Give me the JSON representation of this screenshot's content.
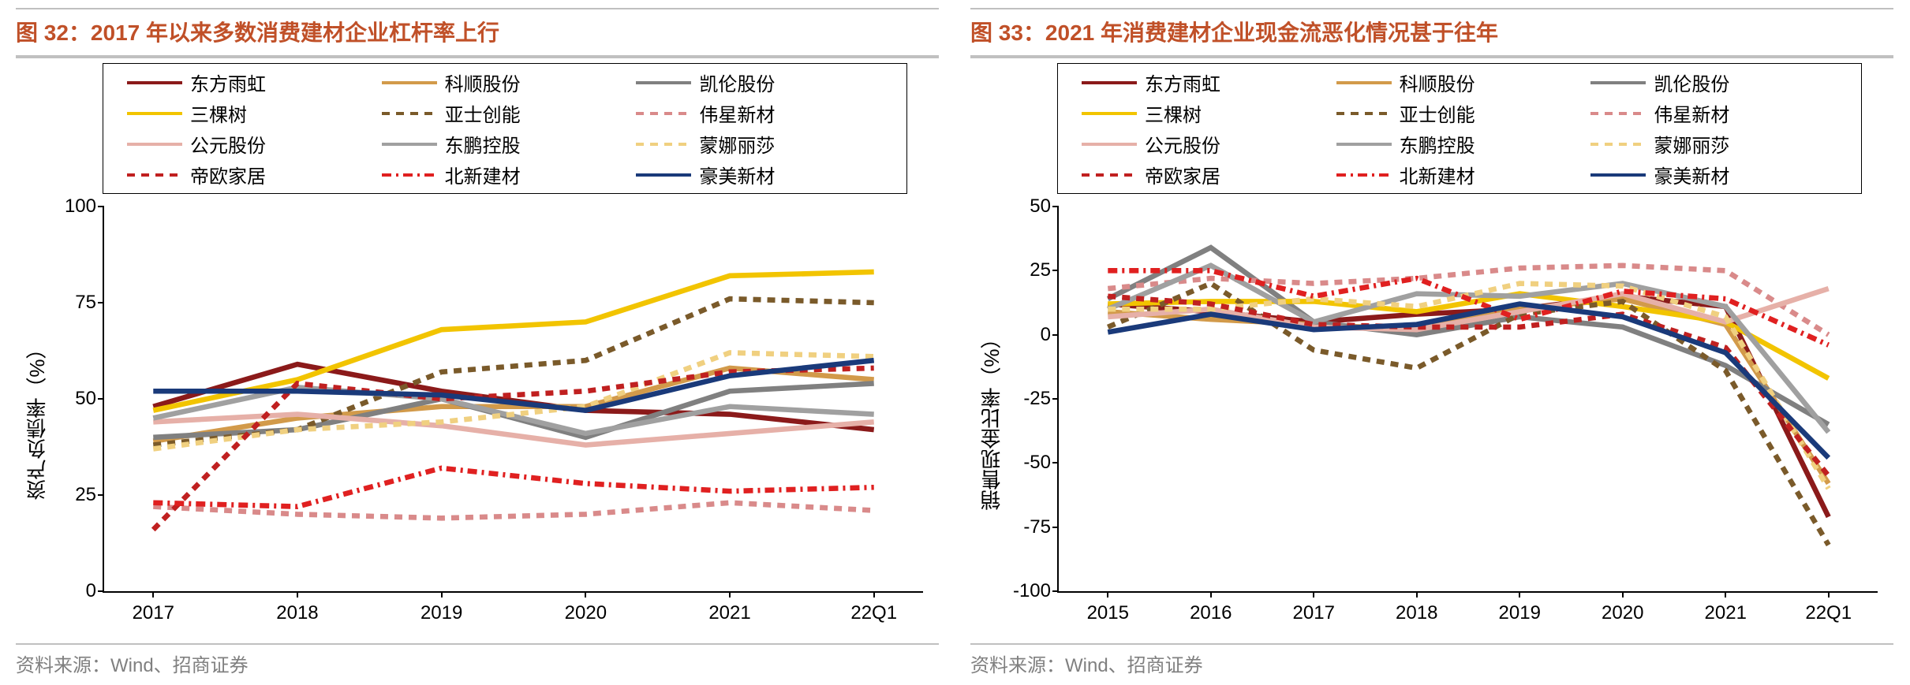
{
  "panels": [
    {
      "title": "图 32：2017 年以来多数消费建材企业杠杆率上行",
      "ylabel": "资产负债率（%）",
      "source": "资料来源：Wind、招商证券",
      "xlabels": [
        "2017",
        "2018",
        "2019",
        "2020",
        "2021",
        "22Q1"
      ],
      "ylim": [
        0,
        100
      ],
      "ytick_step": 25,
      "series": [
        {
          "name": "东方雨虹",
          "color": "#8b1a1a",
          "dash": "solid",
          "width": 3,
          "values": [
            48,
            59,
            52,
            47,
            46,
            42
          ]
        },
        {
          "name": "科顺股份",
          "color": "#d29a4a",
          "dash": "solid",
          "width": 3,
          "values": [
            39,
            45,
            48,
            48,
            58,
            55
          ]
        },
        {
          "name": "凯伦股份",
          "color": "#808080",
          "dash": "solid",
          "width": 3,
          "values": [
            40,
            42,
            50,
            40,
            52,
            54
          ]
        },
        {
          "name": "三棵树",
          "color": "#f2c400",
          "dash": "solid",
          "width": 3,
          "values": [
            47,
            55,
            68,
            70,
            82,
            83
          ]
        },
        {
          "name": "亚士创能",
          "color": "#7a5a2a",
          "dash": "dash",
          "width": 3,
          "values": [
            38,
            42,
            57,
            60,
            76,
            75
          ]
        },
        {
          "name": "伟星新材",
          "color": "#d98a8a",
          "dash": "dash",
          "width": 3,
          "values": [
            22,
            20,
            19,
            20,
            23,
            21
          ]
        },
        {
          "name": "公元股份",
          "color": "#e6b0a8",
          "dash": "solid",
          "width": 3,
          "values": [
            44,
            46,
            43,
            38,
            41,
            44
          ]
        },
        {
          "name": "东鹏控股",
          "color": "#a0a0a0",
          "dash": "solid",
          "width": 3,
          "values": [
            45,
            53,
            50,
            41,
            48,
            46
          ]
        },
        {
          "name": "蒙娜丽莎",
          "color": "#f0d080",
          "dash": "dash",
          "width": 3,
          "values": [
            37,
            42,
            44,
            48,
            62,
            61
          ]
        },
        {
          "name": "帝欧家居",
          "color": "#c02020",
          "dash": "dash",
          "width": 3,
          "values": [
            16,
            54,
            50,
            52,
            57,
            58
          ]
        },
        {
          "name": "北新建材",
          "color": "#e02020",
          "dash": "dashdot",
          "width": 3,
          "values": [
            23,
            22,
            32,
            28,
            26,
            27
          ]
        },
        {
          "name": "豪美新材",
          "color": "#1a3a7a",
          "dash": "solid",
          "width": 3,
          "values": [
            52,
            52,
            51,
            47,
            56,
            60
          ]
        }
      ]
    },
    {
      "title": "图 33：2021 年消费建材企业现金流恶化情况甚于往年",
      "ylabel": "销售现金比率（%）",
      "source": "资料来源：Wind、招商证券",
      "xlabels": [
        "2015",
        "2016",
        "2017",
        "2018",
        "2019",
        "2020",
        "2021",
        "22Q1"
      ],
      "ylim": [
        -100,
        50
      ],
      "ytick_step": 25,
      "series": [
        {
          "name": "东方雨虹",
          "color": "#8b1a1a",
          "dash": "solid",
          "width": 3,
          "values": [
            12,
            9,
            5,
            8,
            10,
            15,
            11,
            -71
          ]
        },
        {
          "name": "科顺股份",
          "color": "#d29a4a",
          "dash": "solid",
          "width": 3,
          "values": [
            9,
            6,
            4,
            2,
            10,
            14,
            4,
            -58
          ]
        },
        {
          "name": "凯伦股份",
          "color": "#808080",
          "dash": "solid",
          "width": 3,
          "values": [
            14,
            34,
            5,
            0,
            7,
            3,
            -12,
            -35
          ]
        },
        {
          "name": "三棵树",
          "color": "#f2c400",
          "dash": "solid",
          "width": 3,
          "values": [
            12,
            13,
            13,
            9,
            16,
            11,
            5,
            -17
          ]
        },
        {
          "name": "亚士创能",
          "color": "#7a5a2a",
          "dash": "dash",
          "width": 3,
          "values": [
            3,
            20,
            -6,
            -13,
            8,
            13,
            -14,
            -82
          ]
        },
        {
          "name": "伟星新材",
          "color": "#d98a8a",
          "dash": "dash",
          "width": 3,
          "values": [
            18,
            22,
            20,
            22,
            26,
            27,
            25,
            0
          ]
        },
        {
          "name": "公元股份",
          "color": "#e6b0a8",
          "dash": "solid",
          "width": 3,
          "values": [
            7,
            10,
            3,
            2,
            9,
            16,
            5,
            18
          ]
        },
        {
          "name": "东鹏控股",
          "color": "#a0a0a0",
          "dash": "solid",
          "width": 3,
          "values": [
            10,
            27,
            5,
            16,
            15,
            20,
            11,
            -38
          ]
        },
        {
          "name": "蒙娜丽莎",
          "color": "#f0d080",
          "dash": "dash",
          "width": 3,
          "values": [
            10,
            10,
            14,
            11,
            20,
            19,
            7,
            -60
          ]
        },
        {
          "name": "帝欧家居",
          "color": "#c02020",
          "dash": "dash",
          "width": 3,
          "values": [
            15,
            12,
            4,
            3,
            3,
            8,
            -5,
            -55
          ]
        },
        {
          "name": "北新建材",
          "color": "#e02020",
          "dash": "dashdot",
          "width": 3,
          "values": [
            25,
            25,
            15,
            22,
            6,
            17,
            14,
            -4
          ]
        },
        {
          "name": "豪美新材",
          "color": "#1a3a7a",
          "dash": "solid",
          "width": 3,
          "values": [
            1,
            8,
            2,
            4,
            12,
            7,
            -7,
            -48
          ]
        }
      ]
    }
  ],
  "dash_map": {
    "solid": "",
    "dash": "10 8",
    "dashdot": "12 6 3 6"
  }
}
